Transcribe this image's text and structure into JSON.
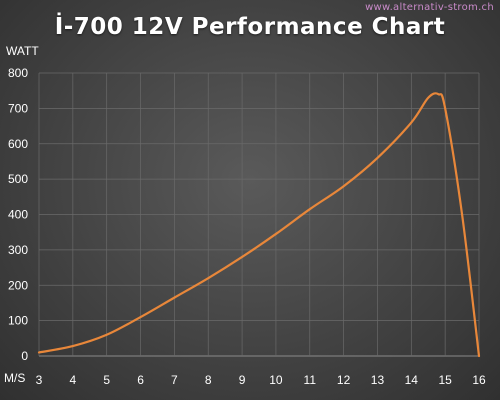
{
  "watermark": "www.alternativ-strom.ch",
  "chart_data": {
    "type": "line",
    "title": "İ-700 12V Performance Chart",
    "xlabel": "M/S",
    "ylabel": "WATT",
    "xlim": [
      3,
      16
    ],
    "ylim": [
      0,
      800
    ],
    "x_ticks": [
      3,
      4,
      5,
      6,
      7,
      8,
      9,
      10,
      11,
      12,
      13,
      14,
      15,
      16
    ],
    "y_ticks": [
      0,
      100,
      200,
      300,
      400,
      500,
      600,
      700,
      800
    ],
    "grid": true,
    "legend": "none",
    "line_color": "#e8873a",
    "series": [
      {
        "x": [
          3,
          4,
          5,
          6,
          7,
          8,
          9,
          10,
          11,
          12,
          13,
          14,
          14.5,
          14.8,
          15,
          15.5,
          16
        ],
        "y": [
          10,
          28,
          60,
          110,
          165,
          220,
          280,
          345,
          415,
          480,
          560,
          660,
          730,
          740,
          700,
          400,
          0
        ]
      }
    ]
  }
}
